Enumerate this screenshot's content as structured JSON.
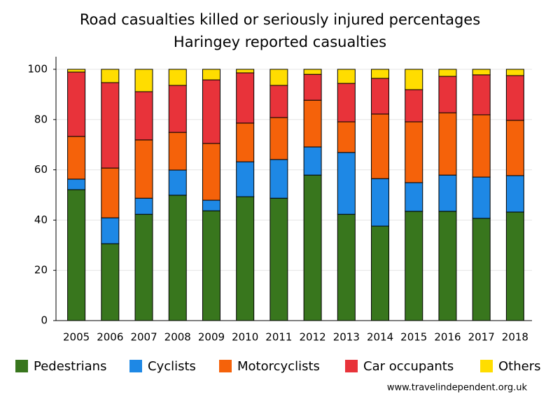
{
  "chart_data": {
    "type": "stacked_bar",
    "title": "Road casualties killed or seriously injured percentages",
    "subtitle": "Haringey reported casualties",
    "source": "www.travelindependent.org.uk",
    "categories": [
      "2005",
      "2006",
      "2007",
      "2008",
      "2009",
      "2010",
      "2011",
      "2012",
      "2013",
      "2014",
      "2015",
      "2016",
      "2017",
      "2018"
    ],
    "series": [
      {
        "name": "Pedestrians",
        "color": "#38761d",
        "values": [
          52.1,
          30.6,
          42.3,
          49.9,
          43.7,
          49.3,
          48.7,
          57.9,
          42.3,
          37.6,
          43.5,
          43.5,
          40.7,
          43.2
        ]
      },
      {
        "name": "Cyclists",
        "color": "#1e88e5",
        "values": [
          4.2,
          10.3,
          6.4,
          10,
          4.2,
          13.9,
          15.4,
          11.2,
          24.6,
          18.9,
          11.4,
          14.4,
          16.4,
          14.5
        ]
      },
      {
        "name": "Motorcyclists",
        "color": "#f5620a",
        "values": [
          17,
          19.8,
          23.2,
          15,
          22.6,
          15.4,
          16.7,
          18.6,
          12.2,
          25.7,
          24.2,
          24.8,
          24.8,
          22
        ]
      },
      {
        "name": "Car occupants",
        "color": "#e8333a",
        "values": [
          25.6,
          34,
          19.2,
          18.7,
          25.3,
          20,
          12.8,
          10.3,
          15.3,
          14.2,
          12.8,
          14.5,
          15.9,
          17.8
        ]
      },
      {
        "name": "Others",
        "color": "#ffdd00",
        "values": [
          1.1,
          5.3,
          8.9,
          6.4,
          4.2,
          1.4,
          6.4,
          2,
          5.6,
          3.6,
          8.1,
          2.8,
          2.2,
          2.5
        ]
      }
    ],
    "ylim": [
      0,
      100
    ],
    "yticks": [
      0,
      20,
      40,
      60,
      80,
      100
    ],
    "grid": true
  }
}
